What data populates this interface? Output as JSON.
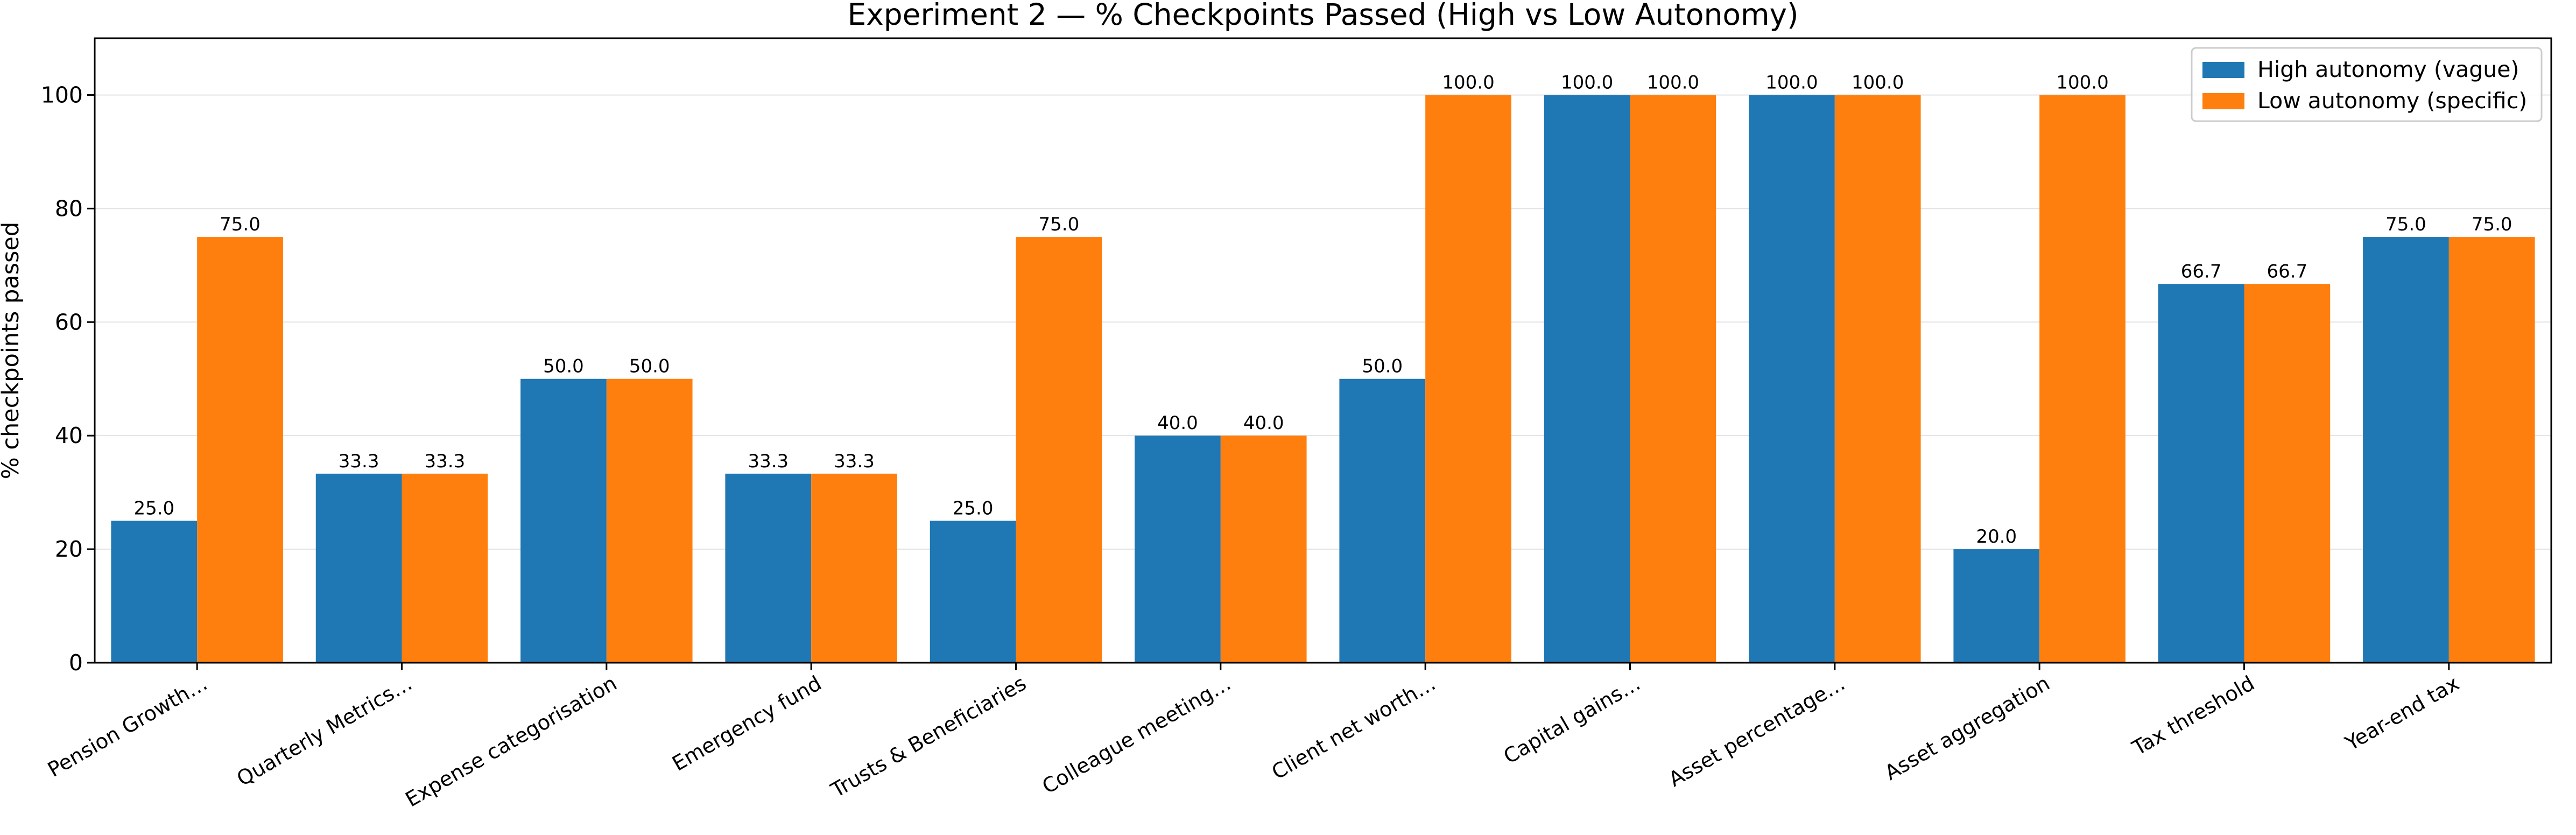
{
  "chart_data": {
    "type": "bar",
    "title": "Experiment 2 — % Checkpoints Passed (High vs Low Autonomy)",
    "xlabel": "",
    "ylabel": "% checkpoints passed",
    "ylim": [
      0,
      110
    ],
    "yticks": [
      0,
      20,
      40,
      60,
      80,
      100
    ],
    "grid": "y",
    "legend_position": "top-right",
    "categories": [
      "Pension Growth…",
      "Quarterly Metrics…",
      "Expense categorisation",
      "Emergency fund",
      "Trusts & Beneficiaries",
      "Colleague meeting…",
      "Client net worth…",
      "Capital gains…",
      "Asset percentage…",
      "Asset aggregation",
      "Tax threshold",
      "Year-end tax"
    ],
    "series": [
      {
        "name": "High autonomy (vague)",
        "color": "#1f77b4",
        "values": [
          25.0,
          33.3,
          50.0,
          33.3,
          25.0,
          40.0,
          50.0,
          100.0,
          100.0,
          20.0,
          66.7,
          75.0
        ],
        "labels": [
          "25.0",
          "33.3",
          "50.0",
          "33.3",
          "25.0",
          "40.0",
          "50.0",
          "100.0",
          "100.0",
          "20.0",
          "66.7",
          "75.0"
        ]
      },
      {
        "name": "Low autonomy (specific)",
        "color": "#ff7f0e",
        "values": [
          75.0,
          33.3,
          50.0,
          33.3,
          75.0,
          40.0,
          100.0,
          100.0,
          100.0,
          100.0,
          66.7,
          75.0
        ],
        "labels": [
          "75.0",
          "33.3",
          "50.0",
          "33.3",
          "75.0",
          "40.0",
          "100.0",
          "100.0",
          "100.0",
          "100.0",
          "66.7",
          "75.0"
        ]
      }
    ]
  }
}
